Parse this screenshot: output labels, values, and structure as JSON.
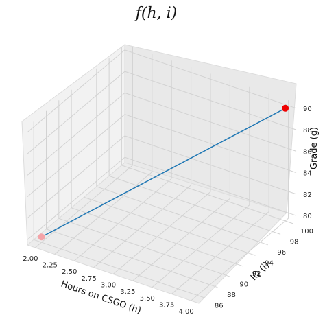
{
  "chart_data": {
    "type": "line3d",
    "title": "f(h, i)",
    "xlabel": "Hours on CSGO (h)",
    "ylabel": "IQ (i)",
    "zlabel": "Grade (g)",
    "xlim": [
      1.9,
      4.1
    ],
    "ylim": [
      85,
      100.5
    ],
    "zlim": [
      79.5,
      90.5
    ],
    "xticks": [
      "2.00",
      "2.25",
      "2.50",
      "2.75",
      "3.00",
      "3.25",
      "3.50",
      "3.75",
      "4.00"
    ],
    "yticks": [
      "86",
      "88",
      "90",
      "92",
      "94",
      "96",
      "98",
      "100"
    ],
    "zticks": [
      "80",
      "82",
      "84",
      "86",
      "88",
      "90"
    ],
    "line": {
      "color": "#1f77b4",
      "points": [
        {
          "x": 2.0,
          "y": 86,
          "z": 80
        },
        {
          "x": 4.0,
          "y": 100,
          "z": 90
        }
      ]
    },
    "markers": [
      {
        "x": 2.0,
        "y": 86,
        "z": 80,
        "color": "#f4a3a8"
      },
      {
        "x": 4.0,
        "y": 100,
        "z": 90,
        "color": "#ee0000"
      }
    ],
    "grid": true
  }
}
